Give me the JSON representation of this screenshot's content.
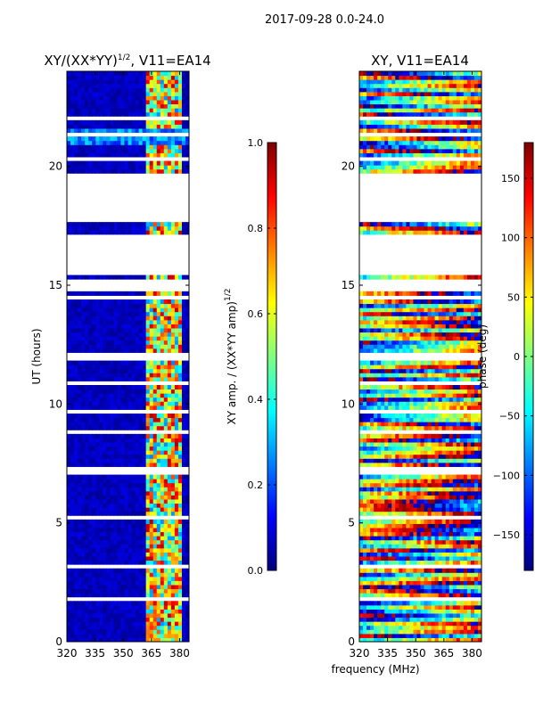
{
  "suptitle": "2017-09-28 0.0-24.0",
  "xlabel": "frequency (MHz)",
  "colors": {
    "jet": [
      "#00007f",
      "#0000ff",
      "#007fff",
      "#00ffff",
      "#7fff7f",
      "#ffff00",
      "#ff7f00",
      "#ff0000",
      "#7f0000"
    ]
  },
  "chart_data": [
    {
      "type": "heatmap",
      "title": "XY/(XX*YY)",
      "title_exp": "1/2",
      "title_suffix": ", V11=EA14",
      "xlabel": "",
      "ylabel": "UT (hours)",
      "xlim": [
        320,
        385
      ],
      "ylim": [
        0,
        24
      ],
      "xticks": [
        "320",
        "335",
        "350",
        "365",
        "380"
      ],
      "xtick_values": [
        320,
        335,
        350,
        365,
        380
      ],
      "yticks": [
        "0",
        "5",
        "10",
        "15",
        "20"
      ],
      "ytick_values": [
        0,
        5,
        10,
        15,
        20
      ],
      "colorbar": {
        "label": "XY amp. / (XX*YY amp)",
        "label_exp": "1/2",
        "range": [
          0.0,
          1.0
        ],
        "ticks": [
          "0.0",
          "0.2",
          "0.4",
          "0.6",
          "0.8",
          "1.0"
        ],
        "tick_values": [
          0.0,
          0.2,
          0.4,
          0.6,
          0.8,
          1.0
        ]
      },
      "data_gaps_hours": [
        [
          21.9,
          22.1
        ],
        [
          20.2,
          20.4
        ],
        [
          17.6,
          19.6
        ],
        [
          15.4,
          17.1
        ],
        [
          14.8,
          15.3
        ],
        [
          8.7,
          8.9
        ],
        [
          7.1,
          7.3
        ]
      ],
      "bright_band_mhz": [
        362,
        380
      ],
      "description_value": "low amplitude (~0.0-0.1) below 362 MHz, mixed 0.3-0.9 between 362 and 380 MHz"
    },
    {
      "type": "heatmap",
      "title": "XY, V11=EA14",
      "xlabel": "",
      "ylabel": "",
      "xlim": [
        320,
        385
      ],
      "ylim": [
        0,
        24
      ],
      "xticks": [
        "320",
        "335",
        "350",
        "365",
        "380"
      ],
      "xtick_values": [
        320,
        335,
        350,
        365,
        380
      ],
      "yticks": [
        "0",
        "5",
        "10",
        "15",
        "20"
      ],
      "ytick_values": [
        0,
        5,
        10,
        15,
        20
      ],
      "colorbar": {
        "label": "phase (deg)",
        "range": [
          -180,
          180
        ],
        "ticks": [
          "−150",
          "−100",
          "−50",
          "0",
          "50",
          "100",
          "150"
        ],
        "tick_values": [
          -150,
          -100,
          -50,
          0,
          50,
          100,
          150
        ]
      },
      "data_gaps_hours": [
        [
          21.9,
          22.1
        ],
        [
          20.2,
          20.4
        ],
        [
          17.6,
          19.6
        ],
        [
          15.4,
          17.1
        ],
        [
          14.8,
          15.3
        ],
        [
          8.7,
          8.9
        ],
        [
          7.1,
          7.3
        ]
      ]
    }
  ]
}
